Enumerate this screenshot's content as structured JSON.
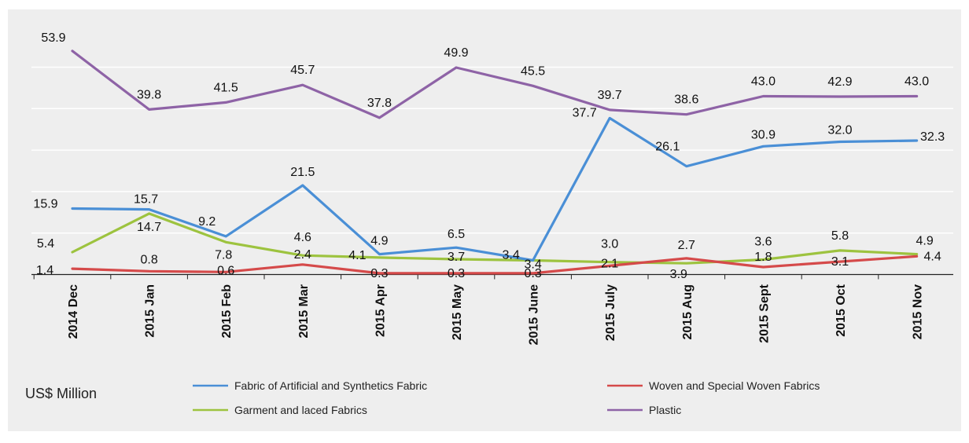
{
  "chart_data": {
    "type": "line",
    "categories": [
      "2014 Dec",
      "2015 Jan",
      "2015 Feb",
      "2015 Mar",
      "2015 Apr",
      "2015 May",
      "2015 June",
      "2015 July",
      "2015 Aug",
      "2015 Sept",
      "2015 Oct",
      "2015 Nov"
    ],
    "unit_label": "US$ Million",
    "ylim": [
      0,
      56
    ],
    "grid": true,
    "legend_position": "bottom",
    "series": [
      {
        "name": "Plastic",
        "color": "#8e63a6",
        "values": [
          53.9,
          39.8,
          41.5,
          45.7,
          37.8,
          49.9,
          45.5,
          39.7,
          38.6,
          43.0,
          42.9,
          43.0
        ],
        "labels": [
          "53.9",
          "39.8",
          "41.5",
          "45.7",
          "37.8",
          "49.9",
          "45.5",
          "39.7",
          "38.6",
          "43.0",
          "42.9",
          "43.0"
        ]
      },
      {
        "name": "Fabric of  Artificial and Synthetics Fabric",
        "color": "#4a8fd6",
        "values": [
          15.9,
          15.7,
          9.2,
          21.5,
          4.9,
          6.5,
          3.4,
          37.7,
          26.1,
          30.9,
          32.0,
          32.3
        ],
        "labels": [
          "15.9",
          "15.7",
          "9.2",
          "21.5",
          "4.9",
          "6.5",
          "3.4",
          "37.7",
          "26.1",
          "30.9",
          "32.0",
          "32.3"
        ]
      },
      {
        "name": "Garment and laced Fabrics",
        "color": "#9dc33f",
        "values": [
          5.4,
          14.7,
          7.8,
          4.6,
          4.1,
          3.7,
          3.4,
          3.0,
          2.7,
          3.6,
          5.8,
          4.9
        ],
        "labels": [
          "5.4",
          "14.7",
          "7.8",
          "4.6",
          "4.1",
          "3.7",
          "3.4",
          "3.0",
          "2.7",
          "3.6",
          "5.8",
          "4.9"
        ]
      },
      {
        "name": "Woven and Special Woven Fabrics",
        "color": "#d54a4a",
        "values": [
          1.4,
          0.8,
          0.6,
          2.4,
          0.3,
          0.3,
          0.3,
          2.1,
          3.9,
          1.8,
          3.1,
          4.4
        ],
        "labels": [
          "1.4",
          "0.8",
          "0.6",
          "2.4",
          "0.3",
          "0.3",
          "0.3",
          "2.1",
          "3.9",
          "1.8",
          "3.1",
          "4.4"
        ]
      }
    ],
    "legend": [
      {
        "name": "Fabric of  Artificial and Synthetics Fabric",
        "color": "#4a8fd6"
      },
      {
        "name": "Woven and Special Woven Fabrics",
        "color": "#d54a4a"
      },
      {
        "name": "Garment and laced Fabrics",
        "color": "#9dc33f"
      },
      {
        "name": "Plastic",
        "color": "#8e63a6"
      }
    ]
  }
}
